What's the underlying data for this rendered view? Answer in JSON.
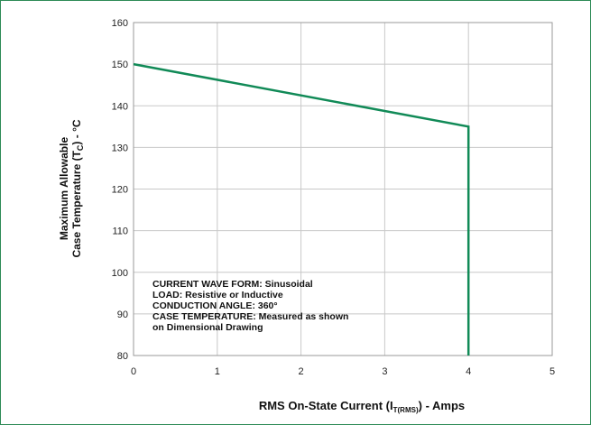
{
  "chart_data": {
    "type": "line",
    "x_ticks": [
      0,
      1,
      2,
      3,
      4,
      5
    ],
    "y_ticks": [
      80,
      90,
      100,
      110,
      120,
      130,
      140,
      150,
      160
    ],
    "xlim": [
      0,
      5
    ],
    "ylim": [
      80,
      160
    ],
    "grid": true,
    "series": [
      {
        "x": [
          0,
          4,
          4
        ],
        "y": [
          150,
          135,
          80
        ]
      }
    ],
    "ylabel_line1": "Maximum Allowable",
    "ylabel_line2": "Case Temperature (T",
    "ylabel_sub": "C",
    "ylabel_tail": ") - °C",
    "xlabel_main": "RMS On-State Current (I",
    "xlabel_sub": "T(RMS)",
    "xlabel_tail": ") - Amps",
    "annotations": [
      "CURRENT WAVE FORM: Sinusoidal",
      "LOAD: Resistive or Inductive",
      "CONDUCTION ANGLE: 360°",
      "CASE TEMPERATURE: Measured as shown",
      "on Dimensional Drawing"
    ],
    "colors": {
      "series": "#118a57",
      "grid": "#c8c8c8",
      "border": "#2e8b57"
    }
  }
}
